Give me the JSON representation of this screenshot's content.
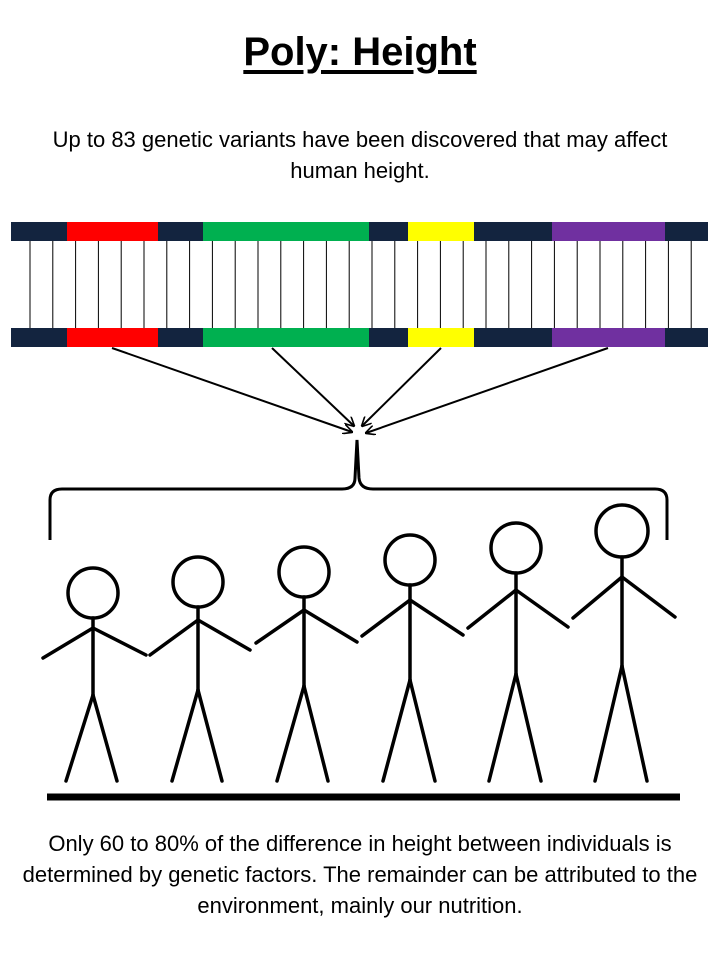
{
  "title": "Poly: Height",
  "intro": "Up to 83 genetic variants have been discovered that may affect human height.",
  "outro": "Only 60 to 80% of the difference in height between individuals is determined by genetic factors. The remainder can be attributed to the environment, mainly our nutrition.",
  "colors": {
    "backbone": "#13243f",
    "red": "#ff0000",
    "green": "#00b050",
    "yellow": "#ffff00",
    "purple": "#7030a0",
    "ink": "#000000"
  },
  "gene_segments": [
    {
      "name": "gene-segment-red",
      "color": "red"
    },
    {
      "name": "gene-segment-green",
      "color": "green"
    },
    {
      "name": "gene-segment-yellow",
      "color": "yellow"
    },
    {
      "name": "gene-segment-purple",
      "color": "purple"
    }
  ],
  "figure_count": 6
}
